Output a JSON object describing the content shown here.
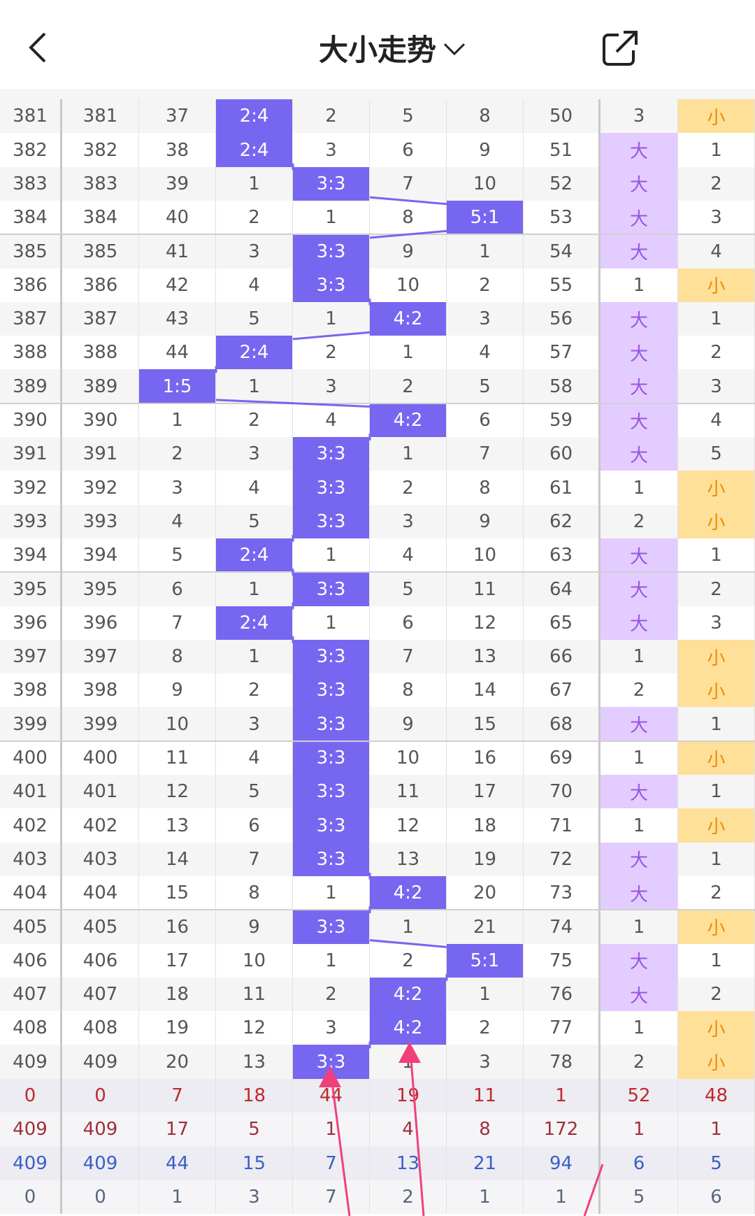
{
  "header": {
    "title": "大小走势"
  },
  "table": {
    "rows": [
      [
        "381",
        "381",
        "37",
        "2:4",
        "2",
        "5",
        "8",
        "50",
        "3",
        "小"
      ],
      [
        "382",
        "382",
        "38",
        "2:4",
        "3",
        "6",
        "9",
        "51",
        "大",
        "1"
      ],
      [
        "383",
        "383",
        "39",
        "1",
        "3:3",
        "7",
        "10",
        "52",
        "大",
        "2"
      ],
      [
        "384",
        "384",
        "40",
        "2",
        "1",
        "8",
        "5:1",
        "53",
        "大",
        "3"
      ],
      [
        "385",
        "385",
        "41",
        "3",
        "3:3",
        "9",
        "1",
        "54",
        "大",
        "4"
      ],
      [
        "386",
        "386",
        "42",
        "4",
        "3:3",
        "10",
        "2",
        "55",
        "1",
        "小"
      ],
      [
        "387",
        "387",
        "43",
        "5",
        "1",
        "4:2",
        "3",
        "56",
        "大",
        "1"
      ],
      [
        "388",
        "388",
        "44",
        "2:4",
        "2",
        "1",
        "4",
        "57",
        "大",
        "2"
      ],
      [
        "389",
        "389",
        "1:5",
        "1",
        "3",
        "2",
        "5",
        "58",
        "大",
        "3"
      ],
      [
        "390",
        "390",
        "1",
        "2",
        "4",
        "4:2",
        "6",
        "59",
        "大",
        "4"
      ],
      [
        "391",
        "391",
        "2",
        "3",
        "3:3",
        "1",
        "7",
        "60",
        "大",
        "5"
      ],
      [
        "392",
        "392",
        "3",
        "4",
        "3:3",
        "2",
        "8",
        "61",
        "1",
        "小"
      ],
      [
        "393",
        "393",
        "4",
        "5",
        "3:3",
        "3",
        "9",
        "62",
        "2",
        "小"
      ],
      [
        "394",
        "394",
        "5",
        "2:4",
        "1",
        "4",
        "10",
        "63",
        "大",
        "1"
      ],
      [
        "395",
        "395",
        "6",
        "1",
        "3:3",
        "5",
        "11",
        "64",
        "大",
        "2"
      ],
      [
        "396",
        "396",
        "7",
        "2:4",
        "1",
        "6",
        "12",
        "65",
        "大",
        "3"
      ],
      [
        "397",
        "397",
        "8",
        "1",
        "3:3",
        "7",
        "13",
        "66",
        "1",
        "小"
      ],
      [
        "398",
        "398",
        "9",
        "2",
        "3:3",
        "8",
        "14",
        "67",
        "2",
        "小"
      ],
      [
        "399",
        "399",
        "10",
        "3",
        "3:3",
        "9",
        "15",
        "68",
        "大",
        "1"
      ],
      [
        "400",
        "400",
        "11",
        "4",
        "3:3",
        "10",
        "16",
        "69",
        "1",
        "小"
      ],
      [
        "401",
        "401",
        "12",
        "5",
        "3:3",
        "11",
        "17",
        "70",
        "大",
        "1"
      ],
      [
        "402",
        "402",
        "13",
        "6",
        "3:3",
        "12",
        "18",
        "71",
        "1",
        "小"
      ],
      [
        "403",
        "403",
        "14",
        "7",
        "3:3",
        "13",
        "19",
        "72",
        "大",
        "1"
      ],
      [
        "404",
        "404",
        "15",
        "8",
        "1",
        "4:2",
        "20",
        "73",
        "大",
        "2"
      ],
      [
        "405",
        "405",
        "16",
        "9",
        "3:3",
        "1",
        "21",
        "74",
        "1",
        "小"
      ],
      [
        "406",
        "406",
        "17",
        "10",
        "1",
        "2",
        "5:1",
        "75",
        "大",
        "1"
      ],
      [
        "407",
        "407",
        "18",
        "11",
        "2",
        "4:2",
        "1",
        "76",
        "大",
        "2"
      ],
      [
        "408",
        "408",
        "19",
        "12",
        "3",
        "4:2",
        "2",
        "77",
        "1",
        "小"
      ],
      [
        "409",
        "409",
        "20",
        "13",
        "3:3",
        "1",
        "3",
        "78",
        "2",
        "小"
      ]
    ]
  },
  "footer": {
    "rows": [
      [
        "0",
        "0",
        "7",
        "18",
        "44",
        "19",
        "11",
        "1",
        "52",
        "48"
      ],
      [
        "409",
        "409",
        "17",
        "5",
        "1",
        "4",
        "8",
        "172",
        "1",
        "1"
      ],
      [
        "409",
        "409",
        "44",
        "15",
        "7",
        "13",
        "21",
        "94",
        "6",
        "5"
      ],
      [
        "0",
        "0",
        "1",
        "3",
        "7",
        "2",
        "1",
        "1",
        "5",
        "6"
      ]
    ]
  }
}
